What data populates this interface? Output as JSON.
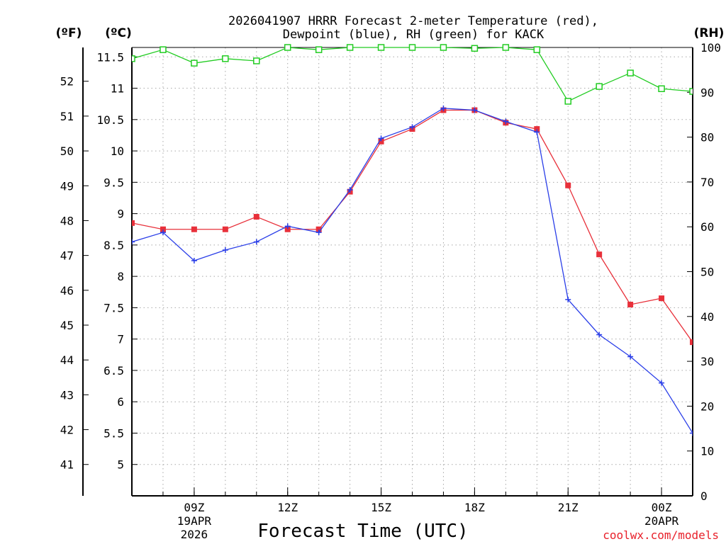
{
  "chart_data": {
    "type": "line",
    "title_line1": "2026041907 HRRR Forecast 2-meter Temperature (red),",
    "title_line2": "Dewpoint (blue), RH (green) for KACK",
    "units": {
      "fahrenheit": "(ºF)",
      "celsius": "(ºC)",
      "rh": "(RH)"
    },
    "xlabel": "Forecast Time (UTC)",
    "credit": "coolwx.com/models",
    "x_hours": [
      7,
      8,
      9,
      10,
      11,
      12,
      13,
      14,
      15,
      16,
      17,
      18,
      19,
      20,
      21,
      22,
      23,
      24,
      25
    ],
    "x_range": [
      7,
      25
    ],
    "x_ticks": [
      {
        "hour": 9,
        "label": "09Z",
        "sub1": "19APR",
        "sub2": "2026"
      },
      {
        "hour": 12,
        "label": "12Z",
        "sub1": "",
        "sub2": ""
      },
      {
        "hour": 15,
        "label": "15Z",
        "sub1": "",
        "sub2": ""
      },
      {
        "hour": 18,
        "label": "18Z",
        "sub1": "",
        "sub2": ""
      },
      {
        "hour": 21,
        "label": "21Z",
        "sub1": "",
        "sub2": ""
      },
      {
        "hour": 24,
        "label": "00Z",
        "sub1": "20APR",
        "sub2": ""
      }
    ],
    "celsius_range": [
      4.5,
      11.65
    ],
    "celsius_ticks": [
      "5",
      "5.5",
      "6",
      "6.5",
      "7",
      "7.5",
      "8",
      "8.5",
      "9",
      "9.5",
      "10",
      "10.5",
      "11",
      "11.5"
    ],
    "fahrenheit_ticks": [
      "41",
      "42",
      "43",
      "44",
      "45",
      "46",
      "47",
      "48",
      "49",
      "50",
      "51",
      "52"
    ],
    "rh_range": [
      0,
      100
    ],
    "rh_ticks": [
      "0",
      "10",
      "20",
      "30",
      "40",
      "50",
      "60",
      "70",
      "80",
      "90",
      "100"
    ],
    "series": [
      {
        "name": "Temperature",
        "unit": "C",
        "color": "#e8303a",
        "values": [
          8.85,
          8.75,
          8.75,
          8.75,
          8.95,
          8.75,
          8.75,
          9.35,
          10.15,
          10.35,
          10.65,
          10.65,
          10.45,
          10.35,
          9.45,
          8.35,
          7.55,
          7.65,
          6.95
        ]
      },
      {
        "name": "Dewpoint",
        "unit": "C",
        "color": "#2a3ee8",
        "values": [
          8.55,
          8.7,
          8.25,
          8.42,
          8.55,
          8.8,
          8.7,
          9.38,
          10.2,
          10.38,
          10.68,
          10.65,
          10.47,
          10.3,
          7.63,
          7.07,
          6.72,
          6.3,
          5.5
        ]
      },
      {
        "name": "RH",
        "unit": "%",
        "color": "#22cc22",
        "values": [
          97.5,
          99.5,
          96.5,
          97.5,
          97,
          100,
          99.5,
          100,
          100,
          100,
          100,
          99.8,
          100,
          99.5,
          88,
          91.3,
          94.3,
          90.8,
          90.2
        ]
      }
    ]
  }
}
